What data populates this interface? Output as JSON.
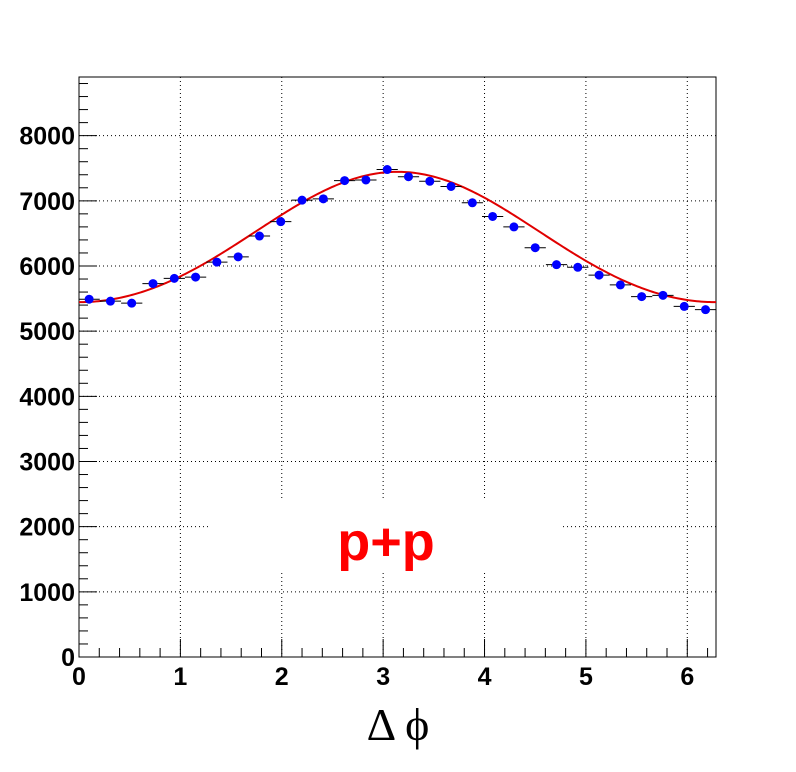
{
  "chart_data": {
    "type": "scatter",
    "title": "",
    "xlabel": "Δ ϕ",
    "ylabel": "",
    "xlim": [
      0,
      6.2832
    ],
    "ylim": [
      0,
      8900
    ],
    "x_ticks": [
      "0",
      "1",
      "2",
      "3",
      "4",
      "5",
      "6"
    ],
    "y_ticks": [
      "0",
      "1000",
      "2000",
      "3000",
      "4000",
      "5000",
      "6000",
      "7000",
      "8000"
    ],
    "grid": true,
    "annotation": "p+p",
    "colors": {
      "points": "#0000ff",
      "fit": "#e00000",
      "annotation": "#ff0000"
    },
    "series": [
      {
        "style": "markers-with-x-error",
        "x": [
          0.1,
          0.31,
          0.52,
          0.73,
          0.94,
          1.15,
          1.36,
          1.57,
          1.78,
          1.99,
          2.2,
          2.41,
          2.62,
          2.83,
          3.04,
          3.25,
          3.46,
          3.67,
          3.88,
          4.08,
          4.29,
          4.5,
          4.71,
          4.92,
          5.13,
          5.34,
          5.55,
          5.76,
          5.97,
          6.18
        ],
        "y": [
          5490,
          5460,
          5430,
          5730,
          5810,
          5830,
          6060,
          6140,
          6460,
          6680,
          7010,
          7030,
          7310,
          7320,
          7480,
          7370,
          7300,
          7220,
          6970,
          6760,
          6600,
          6280,
          6020,
          5980,
          5860,
          5710,
          5530,
          5550,
          5380,
          5330
        ]
      },
      {
        "style": "fit-curve",
        "function": "A + B*cos(x - pi) + C*cos(2*(x - pi))",
        "parameters": {
          "A": 6400,
          "B": 1000,
          "C": 45
        }
      }
    ]
  }
}
